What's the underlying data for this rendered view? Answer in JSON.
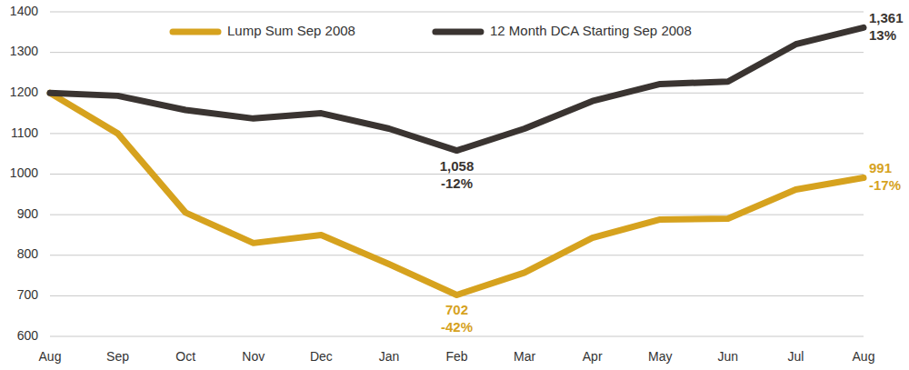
{
  "chart_data": {
    "type": "line",
    "categories": [
      "Aug",
      "Sep",
      "Oct",
      "Nov",
      "Dec",
      "Jan",
      "Feb",
      "Mar",
      "Apr",
      "May",
      "Jun",
      "Jul",
      "Aug"
    ],
    "series": [
      {
        "name": "Lump Sum Sep 2008",
        "color": "#d6a21e",
        "values": [
          1200,
          1100,
          905,
          830,
          850,
          778,
          702,
          757,
          843,
          888,
          890,
          962,
          991
        ],
        "value_labels": [
          null,
          null,
          null,
          null,
          null,
          null,
          "702",
          null,
          null,
          null,
          null,
          null,
          "991"
        ]
      },
      {
        "name": "12 Month DCA Starting Sep 2008",
        "color": "#3a3431",
        "values": [
          1200,
          1193,
          1158,
          1137,
          1150,
          1112,
          1058,
          1112,
          1180,
          1222,
          1228,
          1320,
          1361
        ],
        "value_labels": [
          null,
          null,
          null,
          null,
          null,
          null,
          "1,058",
          null,
          null,
          null,
          null,
          null,
          "1,361"
        ]
      }
    ],
    "annotations": [
      {
        "series": 1,
        "index": 6,
        "text": "-12%"
      },
      {
        "series": 0,
        "index": 6,
        "text": "-42%"
      },
      {
        "series": 0,
        "index": 12,
        "text": "-17%"
      },
      {
        "series": 1,
        "index": 12,
        "text": "13%"
      }
    ],
    "ylim": [
      600,
      1400
    ],
    "yticks": [
      600,
      700,
      800,
      900,
      1000,
      1100,
      1200,
      1300,
      1400
    ],
    "grid": true,
    "legend": "top",
    "data_labels": true
  }
}
